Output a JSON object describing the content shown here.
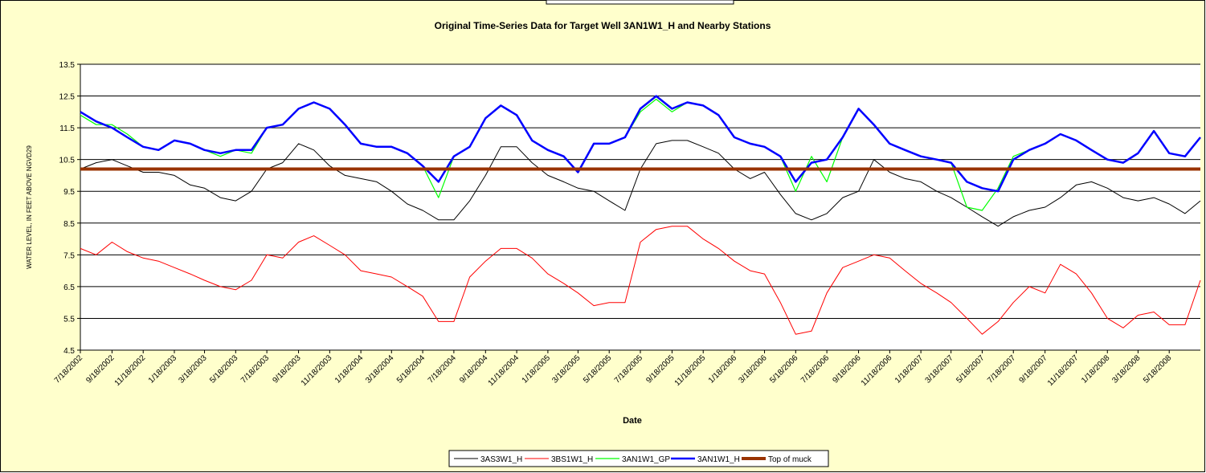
{
  "chart_data": {
    "type": "line",
    "title": "Original Time-Series Data for Target Well 3AN1W1_H and Nearby Stations",
    "x_label": "Date",
    "y_label": "WATER LEVEL, IN FEET ABOVE NGVD29",
    "x": [
      "7/18/2002",
      "8/18/2002",
      "9/18/2002",
      "10/18/2002",
      "11/18/2002",
      "12/18/2002",
      "1/18/2003",
      "2/18/2003",
      "3/18/2003",
      "4/18/2003",
      "5/18/2003",
      "6/18/2003",
      "7/18/2003",
      "8/18/2003",
      "9/18/2003",
      "10/18/2003",
      "11/18/2003",
      "12/18/2003",
      "1/18/2004",
      "2/18/2004",
      "3/18/2004",
      "4/18/2004",
      "5/18/2004",
      "6/18/2004",
      "7/18/2004",
      "8/18/2004",
      "9/18/2004",
      "10/18/2004",
      "11/18/2004",
      "12/18/2004",
      "1/18/2005",
      "2/18/2005",
      "3/18/2005",
      "4/18/2005",
      "5/18/2005",
      "6/18/2005",
      "7/18/2005",
      "8/18/2005",
      "9/18/2005",
      "10/18/2005",
      "11/18/2005",
      "12/18/2005",
      "1/18/2006",
      "2/18/2006",
      "3/18/2006",
      "4/18/2006",
      "5/18/2006",
      "6/18/2006",
      "7/18/2006",
      "8/18/2006",
      "9/18/2006",
      "10/18/2006",
      "11/18/2006",
      "12/18/2006",
      "1/18/2007",
      "2/18/2007",
      "3/18/2007",
      "4/18/2007",
      "5/18/2007",
      "6/18/2007",
      "7/18/2007",
      "8/18/2007",
      "9/18/2007",
      "10/18/2007",
      "11/18/2007",
      "12/18/2007",
      "1/18/2008",
      "2/18/2008",
      "3/18/2008",
      "4/18/2008",
      "5/18/2008",
      "6/18/2008",
      "7/18/2008"
    ],
    "series": [
      {
        "name": "3AS3W1_H",
        "color": "#000000",
        "width": 1,
        "values": [
          10.2,
          10.4,
          10.5,
          10.3,
          10.1,
          10.1,
          10.0,
          9.7,
          9.6,
          9.3,
          9.2,
          9.5,
          10.2,
          10.4,
          11.0,
          10.8,
          10.3,
          10.0,
          9.9,
          9.8,
          9.5,
          9.1,
          8.9,
          8.6,
          8.6,
          9.2,
          10.0,
          10.9,
          10.9,
          10.4,
          10.0,
          9.8,
          9.6,
          9.5,
          9.2,
          8.9,
          10.2,
          11.0,
          11.1,
          11.1,
          10.9,
          10.7,
          10.2,
          9.9,
          10.1,
          9.4,
          8.8,
          8.6,
          8.8,
          9.3,
          9.5,
          10.5,
          10.1,
          9.9,
          9.8,
          9.5,
          9.3,
          9.0,
          8.7,
          8.4,
          8.7,
          8.9,
          9.0,
          9.3,
          9.7,
          9.8,
          9.6,
          9.3,
          9.2,
          9.3,
          9.1,
          8.8,
          9.2
        ]
      },
      {
        "name": "3BS1W1_H",
        "color": "#ff0000",
        "width": 1,
        "values": [
          7.7,
          7.5,
          7.9,
          7.6,
          7.4,
          7.3,
          7.1,
          6.9,
          6.7,
          6.5,
          6.4,
          6.7,
          7.5,
          7.4,
          7.9,
          8.1,
          7.8,
          7.5,
          7.0,
          6.9,
          6.8,
          6.5,
          6.2,
          5.4,
          5.4,
          6.8,
          7.3,
          7.7,
          7.7,
          7.4,
          6.9,
          6.6,
          6.3,
          5.9,
          6.0,
          6.0,
          7.9,
          8.3,
          8.4,
          8.4,
          8.0,
          7.7,
          7.3,
          7.0,
          6.9,
          6.0,
          5.0,
          5.1,
          6.3,
          7.1,
          7.3,
          7.5,
          7.4,
          7.0,
          6.6,
          6.3,
          6.0,
          5.5,
          5.0,
          5.4,
          6.0,
          6.5,
          6.3,
          7.2,
          6.9,
          6.3,
          5.5,
          5.2,
          5.6,
          5.7,
          5.3,
          5.3,
          6.7
        ]
      },
      {
        "name": "3AN1W1_GP",
        "color": "#00ff00",
        "width": 1.2,
        "values": [
          11.9,
          11.6,
          11.6,
          11.3,
          10.9,
          10.8,
          11.1,
          11.0,
          10.8,
          10.6,
          10.8,
          10.7,
          11.5,
          11.6,
          12.1,
          12.3,
          12.1,
          11.6,
          11.0,
          10.9,
          10.9,
          10.7,
          10.3,
          9.3,
          10.6,
          10.9,
          11.8,
          12.2,
          11.9,
          11.1,
          10.8,
          10.6,
          10.1,
          11.0,
          11.0,
          11.2,
          12.0,
          12.4,
          12.0,
          12.3,
          12.2,
          11.9,
          11.2,
          11.0,
          10.9,
          10.6,
          9.5,
          10.6,
          9.8,
          11.2,
          12.1,
          11.6,
          11.0,
          10.8,
          10.6,
          10.5,
          10.4,
          9.0,
          8.9,
          9.6,
          10.6,
          10.8,
          null,
          null,
          null,
          null,
          null,
          null,
          null,
          null,
          null,
          null,
          null
        ]
      },
      {
        "name": "3AN1W1_H",
        "color": "#0000ff",
        "width": 2.5,
        "values": [
          12.0,
          11.7,
          11.5,
          11.2,
          10.9,
          10.8,
          11.1,
          11.0,
          10.8,
          10.7,
          10.8,
          10.8,
          11.5,
          11.6,
          12.1,
          12.3,
          12.1,
          11.6,
          11.0,
          10.9,
          10.9,
          10.7,
          10.3,
          9.8,
          10.6,
          10.9,
          11.8,
          12.2,
          11.9,
          11.1,
          10.8,
          10.6,
          10.1,
          11.0,
          11.0,
          11.2,
          12.1,
          12.5,
          12.1,
          12.3,
          12.2,
          11.9,
          11.2,
          11.0,
          10.9,
          10.6,
          9.8,
          10.4,
          10.5,
          11.2,
          12.1,
          11.6,
          11.0,
          10.8,
          10.6,
          10.5,
          10.4,
          9.8,
          9.6,
          9.5,
          10.5,
          10.8,
          11.0,
          11.3,
          11.1,
          10.8,
          10.5,
          10.4,
          10.7,
          11.4,
          10.7,
          10.6,
          11.2
        ]
      },
      {
        "name": "Top of muck",
        "color": "#993300",
        "width": 4,
        "values": [
          10.2,
          10.2,
          10.2,
          10.2,
          10.2,
          10.2,
          10.2,
          10.2,
          10.2,
          10.2,
          10.2,
          10.2,
          10.2,
          10.2,
          10.2,
          10.2,
          10.2,
          10.2,
          10.2,
          10.2,
          10.2,
          10.2,
          10.2,
          10.2,
          10.2,
          10.2,
          10.2,
          10.2,
          10.2,
          10.2,
          10.2,
          10.2,
          10.2,
          10.2,
          10.2,
          10.2,
          10.2,
          10.2,
          10.2,
          10.2,
          10.2,
          10.2,
          10.2,
          10.2,
          10.2,
          10.2,
          10.2,
          10.2,
          10.2,
          10.2,
          10.2,
          10.2,
          10.2,
          10.2,
          10.2,
          10.2,
          10.2,
          10.2,
          10.2,
          10.2,
          10.2,
          10.2,
          10.2,
          10.2,
          10.2,
          10.2,
          10.2,
          10.2,
          10.2,
          10.2,
          10.2,
          10.2,
          10.2
        ]
      }
    ],
    "xlim": [
      "7/18/2002",
      "7/18/2008"
    ],
    "xticks": [
      "7/18/2002",
      "9/18/2002",
      "11/18/2002",
      "1/18/2003",
      "3/18/2003",
      "5/18/2003",
      "7/18/2003",
      "9/18/2003",
      "11/18/2003",
      "1/18/2004",
      "3/18/2004",
      "5/18/2004",
      "7/18/2004",
      "9/18/2004",
      "11/18/2004",
      "1/18/2005",
      "3/18/2005",
      "5/18/2005",
      "7/18/2005",
      "9/18/2005",
      "11/18/2005",
      "1/18/2006",
      "3/18/2006",
      "5/18/2006",
      "7/18/2006",
      "9/18/2006",
      "11/18/2006",
      "1/18/2007",
      "3/18/2007",
      "5/18/2007",
      "7/18/2007",
      "9/18/2007",
      "11/18/2007",
      "1/18/2008",
      "3/18/2008",
      "5/18/2008"
    ],
    "ylim": [
      4.5,
      13.5
    ],
    "yticks": [
      4.5,
      5.5,
      6.5,
      7.5,
      8.5,
      9.5,
      10.5,
      11.5,
      12.5,
      13.5
    ],
    "grid": true,
    "legend": "bottom"
  }
}
